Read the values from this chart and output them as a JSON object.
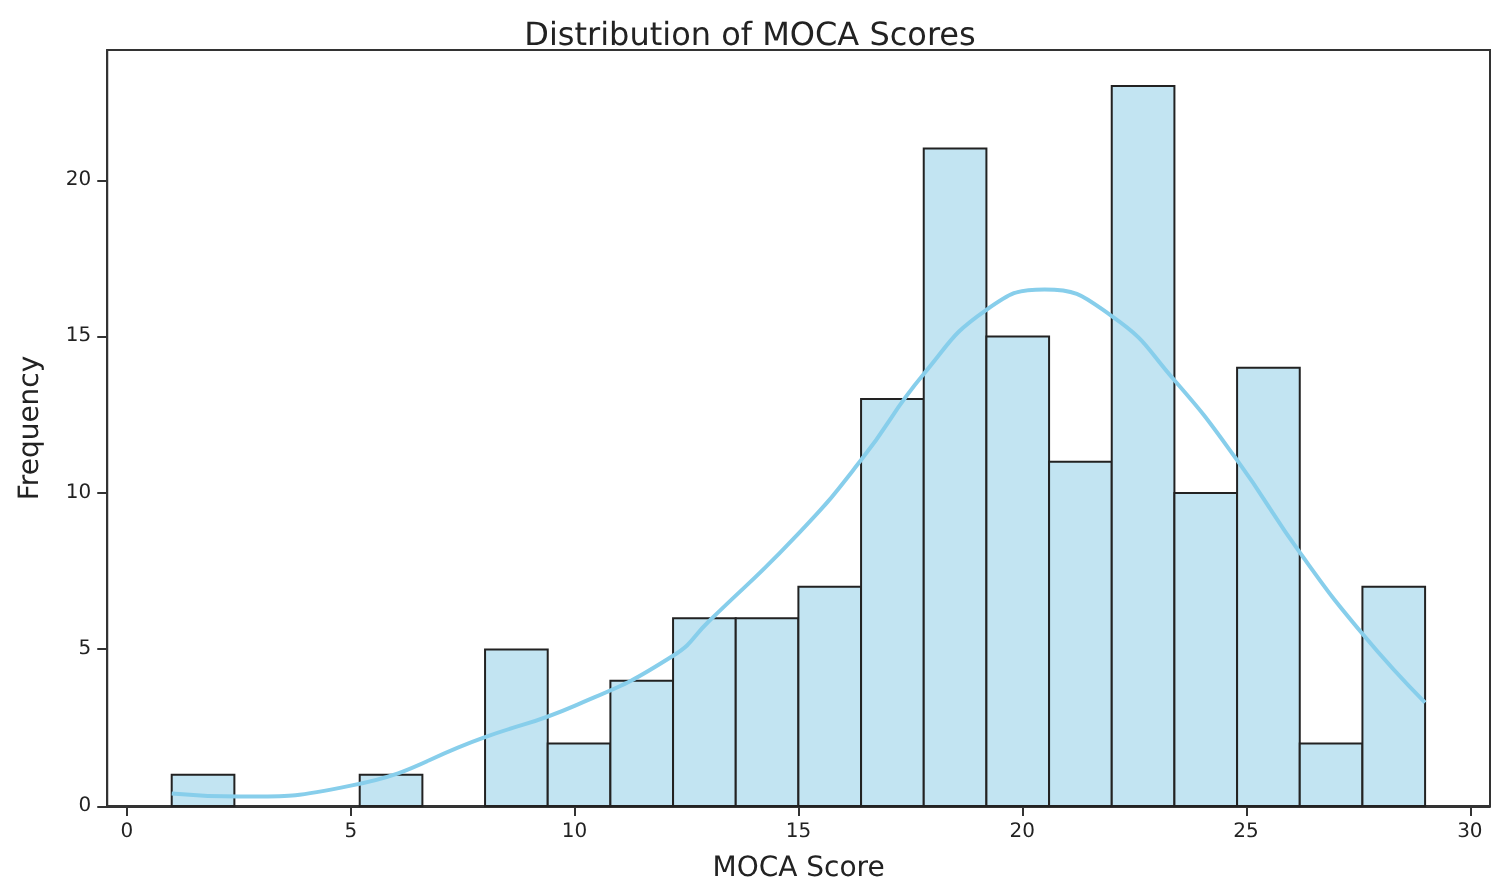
{
  "chart_data": {
    "type": "histogram",
    "title": "Distribution of MOCA Scores",
    "xlabel": "MOCA Score",
    "ylabel": "Frequency",
    "bins": [
      1,
      2.4,
      3.8,
      5.2,
      6.6,
      8,
      9.4,
      10.8,
      12.2,
      13.6,
      15,
      16.4,
      17.8,
      19.2,
      20.6,
      22,
      23.4,
      24.8,
      26.2,
      27.6,
      29
    ],
    "series": [
      {
        "color": "#c2e4f2",
        "values": [
          1,
          0,
          0,
          1,
          0,
          5,
          2,
          4,
          6,
          6,
          7,
          13,
          21,
          15,
          11,
          23,
          10,
          14,
          2,
          7
        ]
      },
      {
        "type": "line",
        "color": "#87ceeb",
        "x": [
          1,
          2.5,
          5,
          8,
          10,
          12.2,
          13,
          15,
          16.4,
          17.8,
          19.2,
          20.5,
          22,
          23.4,
          24.8,
          26.2,
          27.6,
          29
        ],
        "values": [
          0.4,
          0.3,
          0.65,
          2.2,
          3.2,
          4.8,
          5.9,
          8.7,
          11.05,
          13.8,
          15.85,
          16.5,
          15.65,
          13.6,
          11.05,
          8.1,
          5.5,
          3.3
        ]
      }
    ],
    "xlim": [
      -0.44,
      30.45
    ],
    "xticks": [
      0,
      5,
      10,
      15,
      20,
      25,
      30
    ],
    "ylim": [
      0,
      24.15
    ],
    "yticks": [
      0,
      5,
      10,
      15,
      20
    ]
  }
}
